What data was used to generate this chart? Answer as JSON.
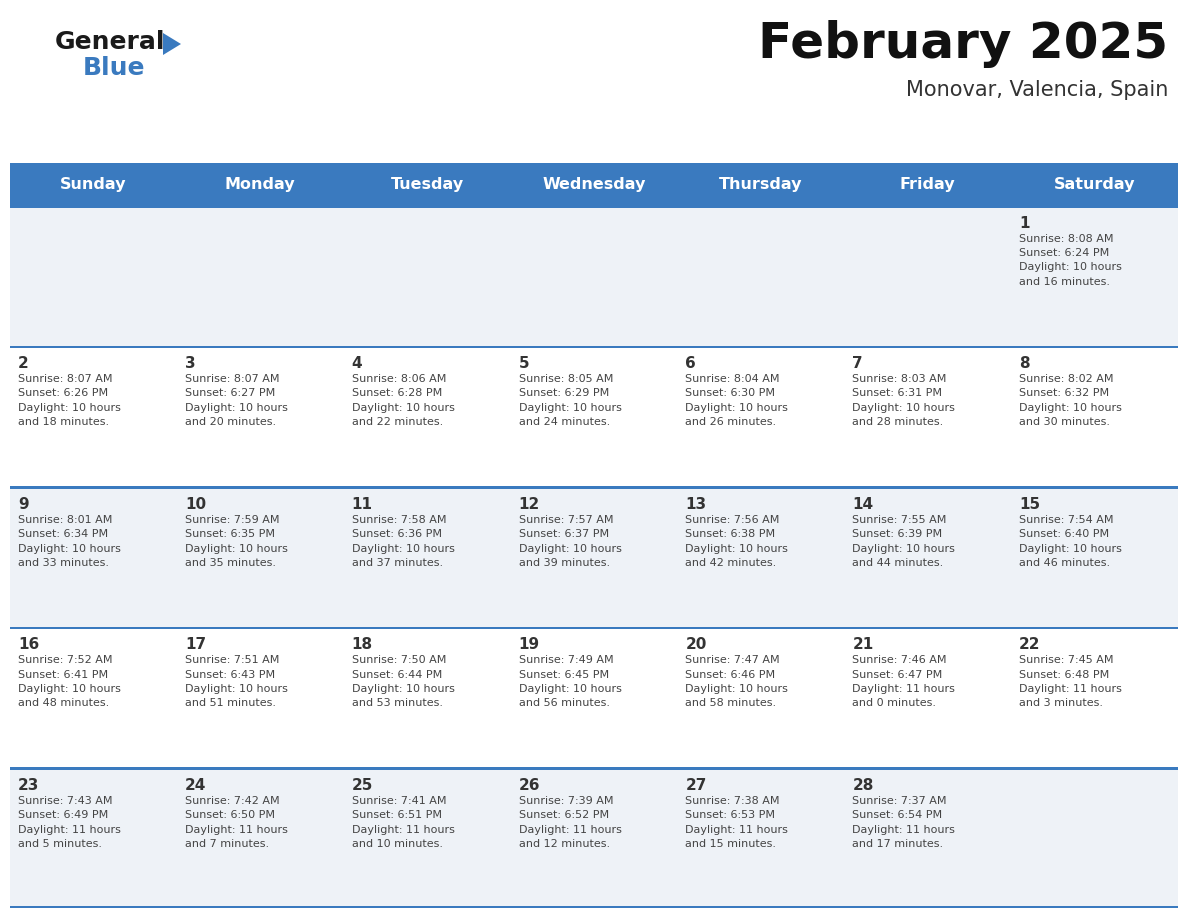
{
  "title": "February 2025",
  "subtitle": "Monovar, Valencia, Spain",
  "header_color": "#3a7abf",
  "header_text_color": "#ffffff",
  "days_of_week": [
    "Sunday",
    "Monday",
    "Tuesday",
    "Wednesday",
    "Thursday",
    "Friday",
    "Saturday"
  ],
  "background_color": "#ffffff",
  "cell_bg_row0": "#eef2f7",
  "cell_bg_row1": "#ffffff",
  "separator_color": "#3a7abf",
  "day_number_color": "#333333",
  "info_text_color": "#444444",
  "calendar_data": [
    [
      {
        "day": null,
        "info": ""
      },
      {
        "day": null,
        "info": ""
      },
      {
        "day": null,
        "info": ""
      },
      {
        "day": null,
        "info": ""
      },
      {
        "day": null,
        "info": ""
      },
      {
        "day": null,
        "info": ""
      },
      {
        "day": 1,
        "info": "Sunrise: 8:08 AM\nSunset: 6:24 PM\nDaylight: 10 hours\nand 16 minutes."
      }
    ],
    [
      {
        "day": 2,
        "info": "Sunrise: 8:07 AM\nSunset: 6:26 PM\nDaylight: 10 hours\nand 18 minutes."
      },
      {
        "day": 3,
        "info": "Sunrise: 8:07 AM\nSunset: 6:27 PM\nDaylight: 10 hours\nand 20 minutes."
      },
      {
        "day": 4,
        "info": "Sunrise: 8:06 AM\nSunset: 6:28 PM\nDaylight: 10 hours\nand 22 minutes."
      },
      {
        "day": 5,
        "info": "Sunrise: 8:05 AM\nSunset: 6:29 PM\nDaylight: 10 hours\nand 24 minutes."
      },
      {
        "day": 6,
        "info": "Sunrise: 8:04 AM\nSunset: 6:30 PM\nDaylight: 10 hours\nand 26 minutes."
      },
      {
        "day": 7,
        "info": "Sunrise: 8:03 AM\nSunset: 6:31 PM\nDaylight: 10 hours\nand 28 minutes."
      },
      {
        "day": 8,
        "info": "Sunrise: 8:02 AM\nSunset: 6:32 PM\nDaylight: 10 hours\nand 30 minutes."
      }
    ],
    [
      {
        "day": 9,
        "info": "Sunrise: 8:01 AM\nSunset: 6:34 PM\nDaylight: 10 hours\nand 33 minutes."
      },
      {
        "day": 10,
        "info": "Sunrise: 7:59 AM\nSunset: 6:35 PM\nDaylight: 10 hours\nand 35 minutes."
      },
      {
        "day": 11,
        "info": "Sunrise: 7:58 AM\nSunset: 6:36 PM\nDaylight: 10 hours\nand 37 minutes."
      },
      {
        "day": 12,
        "info": "Sunrise: 7:57 AM\nSunset: 6:37 PM\nDaylight: 10 hours\nand 39 minutes."
      },
      {
        "day": 13,
        "info": "Sunrise: 7:56 AM\nSunset: 6:38 PM\nDaylight: 10 hours\nand 42 minutes."
      },
      {
        "day": 14,
        "info": "Sunrise: 7:55 AM\nSunset: 6:39 PM\nDaylight: 10 hours\nand 44 minutes."
      },
      {
        "day": 15,
        "info": "Sunrise: 7:54 AM\nSunset: 6:40 PM\nDaylight: 10 hours\nand 46 minutes."
      }
    ],
    [
      {
        "day": 16,
        "info": "Sunrise: 7:52 AM\nSunset: 6:41 PM\nDaylight: 10 hours\nand 48 minutes."
      },
      {
        "day": 17,
        "info": "Sunrise: 7:51 AM\nSunset: 6:43 PM\nDaylight: 10 hours\nand 51 minutes."
      },
      {
        "day": 18,
        "info": "Sunrise: 7:50 AM\nSunset: 6:44 PM\nDaylight: 10 hours\nand 53 minutes."
      },
      {
        "day": 19,
        "info": "Sunrise: 7:49 AM\nSunset: 6:45 PM\nDaylight: 10 hours\nand 56 minutes."
      },
      {
        "day": 20,
        "info": "Sunrise: 7:47 AM\nSunset: 6:46 PM\nDaylight: 10 hours\nand 58 minutes."
      },
      {
        "day": 21,
        "info": "Sunrise: 7:46 AM\nSunset: 6:47 PM\nDaylight: 11 hours\nand 0 minutes."
      },
      {
        "day": 22,
        "info": "Sunrise: 7:45 AM\nSunset: 6:48 PM\nDaylight: 11 hours\nand 3 minutes."
      }
    ],
    [
      {
        "day": 23,
        "info": "Sunrise: 7:43 AM\nSunset: 6:49 PM\nDaylight: 11 hours\nand 5 minutes."
      },
      {
        "day": 24,
        "info": "Sunrise: 7:42 AM\nSunset: 6:50 PM\nDaylight: 11 hours\nand 7 minutes."
      },
      {
        "day": 25,
        "info": "Sunrise: 7:41 AM\nSunset: 6:51 PM\nDaylight: 11 hours\nand 10 minutes."
      },
      {
        "day": 26,
        "info": "Sunrise: 7:39 AM\nSunset: 6:52 PM\nDaylight: 11 hours\nand 12 minutes."
      },
      {
        "day": 27,
        "info": "Sunrise: 7:38 AM\nSunset: 6:53 PM\nDaylight: 11 hours\nand 15 minutes."
      },
      {
        "day": 28,
        "info": "Sunrise: 7:37 AM\nSunset: 6:54 PM\nDaylight: 11 hours\nand 17 minutes."
      },
      {
        "day": null,
        "info": ""
      }
    ]
  ]
}
